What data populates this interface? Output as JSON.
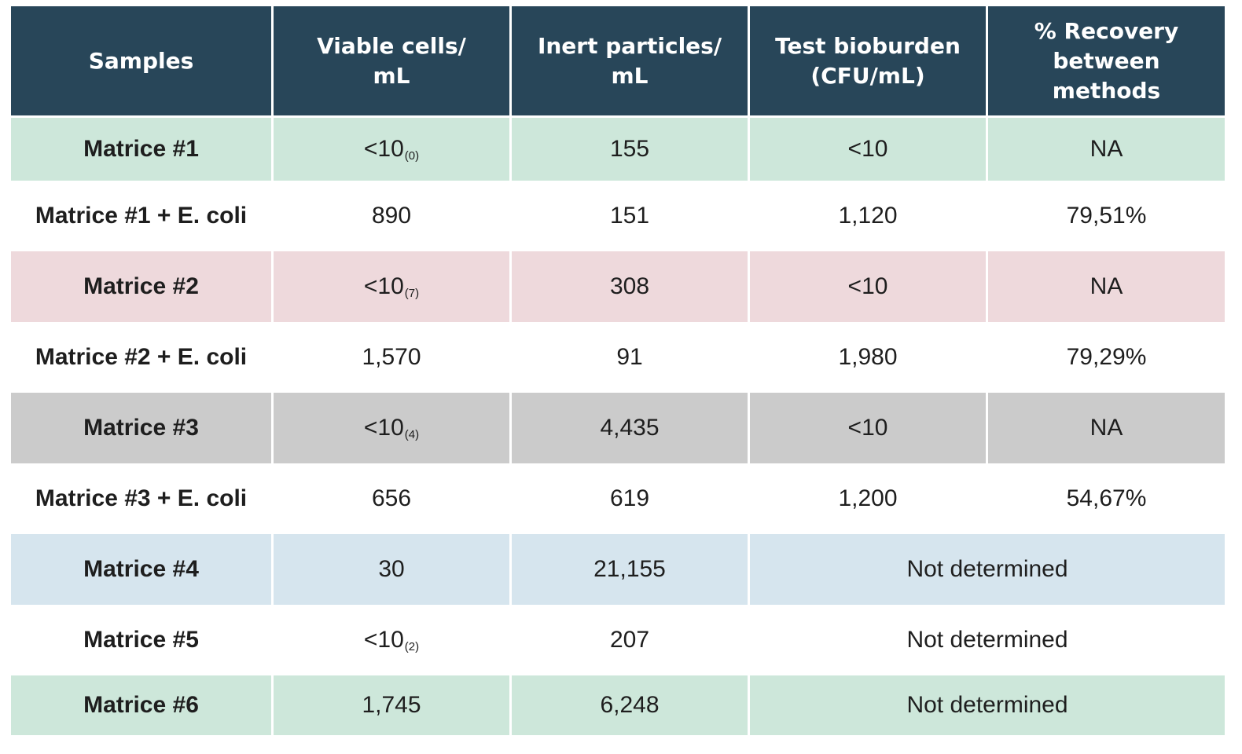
{
  "table": {
    "headers": [
      [
        "Samples"
      ],
      [
        "Viable cells/",
        "mL"
      ],
      [
        "Inert particles/",
        "mL"
      ],
      [
        "Test bioburden",
        "(CFU/mL)"
      ],
      [
        "% Recovery",
        "between",
        "methods"
      ]
    ],
    "rows": [
      {
        "sample": "Matrice #1",
        "viable": "<10",
        "viable_sub": "(0)",
        "inert": "155",
        "bioburden": "<10",
        "recovery": "NA"
      },
      {
        "sample": "Matrice #1 + E. coli",
        "viable": "890",
        "inert": "151",
        "bioburden": "1,120",
        "recovery": "79,51%"
      },
      {
        "sample": "Matrice #2",
        "viable": "<10",
        "viable_sub": "(7)",
        "inert": "308",
        "bioburden": "<10",
        "recovery": "NA"
      },
      {
        "sample": "Matrice #2 + E. coli",
        "viable": "1,570",
        "inert": "91",
        "bioburden": "1,980",
        "recovery": "79,29%"
      },
      {
        "sample": "Matrice #3",
        "viable": "<10",
        "viable_sub": "(4)",
        "inert": "4,435",
        "bioburden": "<10",
        "recovery": "NA"
      },
      {
        "sample": "Matrice #3 + E. coli",
        "viable": "656",
        "inert": "619",
        "bioburden": "1,200",
        "recovery": "54,67%"
      },
      {
        "sample": "Matrice #4",
        "viable": "30",
        "inert": "21,155",
        "merged": "Not determined"
      },
      {
        "sample": "Matrice #5",
        "viable": "<10",
        "viable_sub": "(2)",
        "inert": "207",
        "merged": "Not determined"
      },
      {
        "sample": "Matrice #6",
        "viable": "1,745",
        "inert": "6,248",
        "merged": "Not determined"
      }
    ]
  },
  "colors": {
    "header_bg": "#284659",
    "row_green": "#cde7da",
    "row_pink": "#eed9dc",
    "row_gray": "#cbcbcb",
    "row_blue": "#d6e5ee",
    "ecoli_text": "#3a22a8",
    "text": "#1e1e1e"
  }
}
